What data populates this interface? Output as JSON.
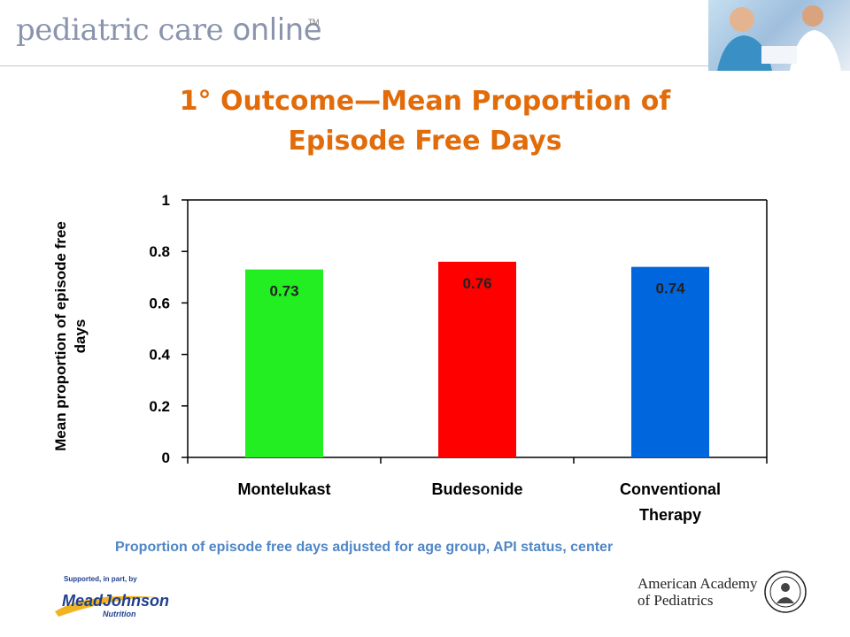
{
  "header": {
    "brand": "pediatric care",
    "brand_online": "online",
    "tm": "TM"
  },
  "title_line1": "1° Outcome—Mean Proportion of",
  "title_line2": "Episode Free Days",
  "chart_data": {
    "type": "bar",
    "categories": [
      "Montelukast",
      "Budesonide",
      "Conventional Therapy"
    ],
    "category_lines": [
      [
        "Montelukast"
      ],
      [
        "Budesonide"
      ],
      [
        "Conventional",
        "Therapy"
      ]
    ],
    "values": [
      0.73,
      0.76,
      0.74
    ],
    "value_labels": [
      "0.73",
      "0.76",
      "0.74"
    ],
    "colors": [
      "#22ee22",
      "#ff0000",
      "#0066dd"
    ],
    "ylabel_line1": "Mean proportion of episode free",
    "ylabel_line2": "days",
    "ylim": [
      0,
      1
    ],
    "yticks": [
      0,
      0.2,
      0.4,
      0.6,
      0.8,
      1
    ],
    "ytick_labels": [
      "0",
      "0.2",
      "0.4",
      "0.6",
      "0.8",
      "1"
    ],
    "grid": false,
    "legend": "none"
  },
  "footnote": "Proportion of episode free days adjusted for age group, API status, center",
  "sponsor": {
    "top": "Supported, in part, by",
    "name": "MeadJohnson",
    "sub": "Nutrition"
  },
  "aap": {
    "line1": "American Academy",
    "line2": "of Pediatrics"
  }
}
